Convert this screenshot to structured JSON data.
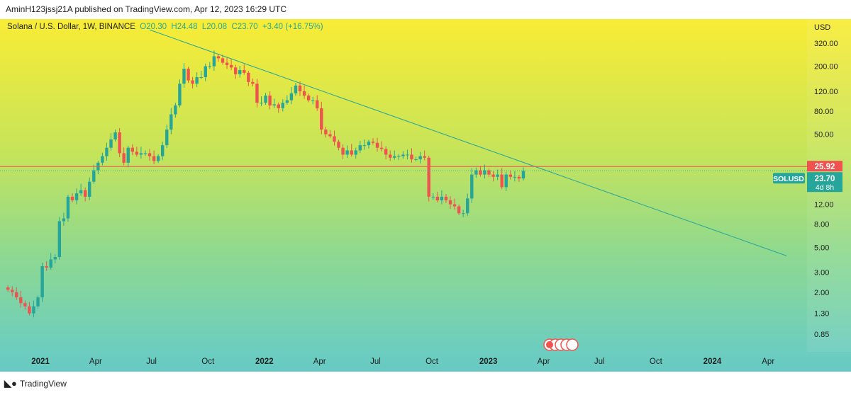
{
  "header": {
    "publisher": "AminH123jssj21A published on TradingView.com, Apr 12, 2023 16:29 UTC"
  },
  "legend": {
    "symbol": "Solana / U.S. Dollar, 1W, BINANCE",
    "open": "O20.30",
    "high": "H24.48",
    "low": "L20.08",
    "close": "C23.70",
    "change": "+3.40 (+16.75%)"
  },
  "price_axis": {
    "currency": "USD",
    "ticks": [
      "320.00",
      "200.00",
      "120.00",
      "80.00",
      "50.00",
      "12.00",
      "8.00",
      "5.00",
      "3.00",
      "2.00",
      "1.30",
      "0.85"
    ],
    "tick_values": [
      320,
      200,
      120,
      80,
      50,
      12,
      8,
      5,
      3,
      2,
      1.3,
      0.85
    ],
    "line_label": "25.92",
    "line_value": 25.92,
    "last_label": "23.70",
    "last_value": 23.7,
    "countdown": "4d 8h",
    "symbol_tag": "SOLUSD"
  },
  "time_axis": {
    "labels": [
      {
        "t": "2021",
        "bold": true
      },
      {
        "t": "Apr"
      },
      {
        "t": "Jul"
      },
      {
        "t": "Oct"
      },
      {
        "t": "2022",
        "bold": true
      },
      {
        "t": "Apr"
      },
      {
        "t": "Jul"
      },
      {
        "t": "Oct"
      },
      {
        "t": "2023",
        "bold": true
      },
      {
        "t": "Apr"
      },
      {
        "t": "Jul"
      },
      {
        "t": "Oct"
      },
      {
        "t": "2024",
        "bold": true
      },
      {
        "t": "Apr"
      }
    ]
  },
  "footer": {
    "brand": "TradingView"
  },
  "colors": {
    "up": "#26a69a",
    "down": "#ef5350",
    "trend": "#26a69a",
    "hline": "#ef5350"
  },
  "chart_data": {
    "type": "candlestick",
    "title": "Solana / U.S. Dollar, 1W, BINANCE",
    "yscale": "log",
    "ylim": [
      0.7,
      420
    ],
    "first_week": "2020-11-09",
    "closes": [
      2.1,
      2.0,
      1.8,
      1.6,
      1.5,
      1.3,
      1.5,
      1.8,
      3.4,
      3.3,
      3.9,
      4.1,
      8.5,
      9.0,
      14,
      13,
      15,
      16,
      14,
      19,
      24,
      28,
      32,
      38,
      45,
      52,
      34,
      28,
      38,
      35,
      33,
      34,
      34,
      32,
      29,
      32,
      40,
      55,
      75,
      90,
      140,
      190,
      150,
      140,
      160,
      160,
      200,
      200,
      245,
      235,
      215,
      205,
      195,
      170,
      185,
      175,
      145,
      140,
      95,
      95,
      110,
      90,
      92,
      85,
      95,
      100,
      115,
      135,
      120,
      110,
      100,
      100,
      85,
      55,
      50,
      48,
      43,
      38,
      33,
      36,
      33,
      36,
      40,
      40,
      43,
      42,
      38,
      37,
      33,
      31,
      32,
      32,
      33,
      33,
      30,
      30,
      32,
      31,
      14,
      14,
      13,
      14,
      13,
      12,
      11.5,
      10,
      10,
      13.5,
      22,
      24,
      22,
      24,
      22,
      21,
      22,
      17,
      22,
      21,
      21,
      20.3,
      23.7
    ],
    "trendline": {
      "from": {
        "date": "2021-06-28",
        "price": 420
      },
      "to": {
        "date": "2024-05-01",
        "price": 4.2
      }
    }
  }
}
